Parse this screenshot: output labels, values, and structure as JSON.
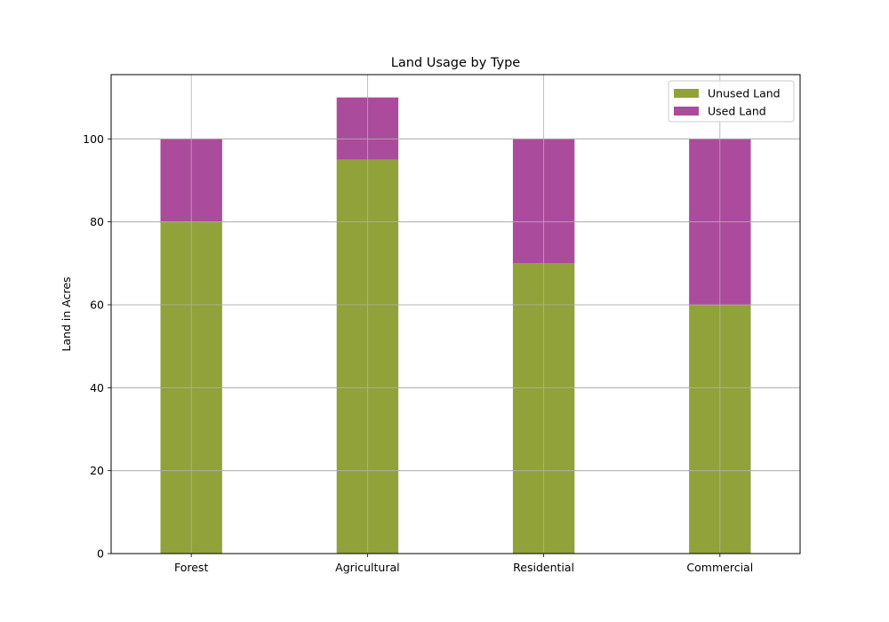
{
  "chart_data": {
    "type": "bar",
    "stacked": true,
    "title": "Land Usage by Type",
    "xlabel": "",
    "ylabel": "Land in Acres",
    "categories": [
      "Forest",
      "Agricultural",
      "Residential",
      "Commercial"
    ],
    "series": [
      {
        "name": "Unused Land",
        "values": [
          80,
          95,
          70,
          60
        ],
        "color": "#91a23a"
      },
      {
        "name": "Used Land",
        "values": [
          20,
          15,
          30,
          40
        ],
        "color": "#ab4b9c"
      }
    ],
    "ylim": [
      0,
      115.5
    ],
    "yticks": [
      0,
      20,
      40,
      60,
      80,
      100
    ],
    "grid": true,
    "legend_position": "top-right"
  }
}
